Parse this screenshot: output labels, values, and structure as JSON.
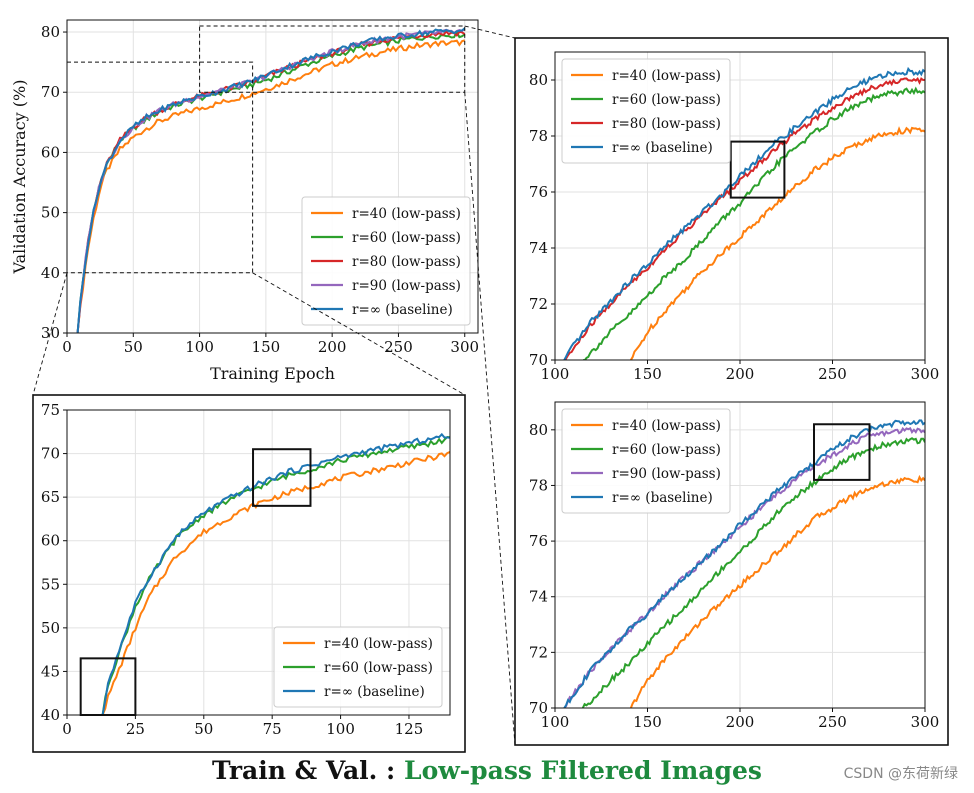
{
  "caption": {
    "prefix": "Train & Val. : ",
    "accent": "Low-pass Filtered Images"
  },
  "watermark": "CSDN @东荷新绿",
  "colors": {
    "r40": "#ff7f0e",
    "r60": "#2ca02c",
    "r80": "#d62728",
    "r90": "#9467bd",
    "rinf": "#1f77b4"
  },
  "chart_data": [
    {
      "id": "main",
      "type": "line",
      "xlabel": "Training Epoch",
      "ylabel": "Validation Accuracy (%)",
      "xlim": [
        0,
        310
      ],
      "ylim": [
        30,
        82
      ],
      "xticks": [
        0,
        50,
        100,
        150,
        200,
        250,
        300
      ],
      "yticks": [
        30,
        40,
        50,
        60,
        70,
        80
      ],
      "grid": true,
      "legend_position": "bottom-right",
      "series": [
        {
          "key": "r40",
          "label": "r=40 (low-pass)",
          "x": [
            8,
            10,
            15,
            20,
            25,
            30,
            40,
            50,
            60,
            70,
            80,
            90,
            100,
            120,
            140,
            160,
            180,
            200,
            220,
            240,
            260,
            280,
            300
          ],
          "y": [
            30,
            34,
            43,
            49,
            54,
            57,
            60.5,
            62.5,
            64,
            65.2,
            66,
            66.7,
            67.3,
            68.5,
            69.8,
            71.3,
            73,
            74.6,
            75.8,
            76.8,
            77.6,
            78.1,
            78.3
          ]
        },
        {
          "key": "r60",
          "label": "r=60 (low-pass)",
          "x": [
            8,
            10,
            15,
            20,
            25,
            30,
            40,
            50,
            60,
            70,
            80,
            90,
            100,
            120,
            140,
            160,
            180,
            200,
            220,
            240,
            260,
            280,
            300
          ],
          "y": [
            30,
            35,
            44,
            50,
            55,
            58,
            62,
            64,
            65.5,
            66.8,
            67.7,
            68.4,
            69,
            70.2,
            71.3,
            72.8,
            74.6,
            76,
            77.3,
            78.2,
            78.9,
            79.4,
            79.6
          ]
        },
        {
          "key": "r80",
          "label": "r=80 (low-pass)",
          "x": [
            8,
            10,
            15,
            20,
            25,
            30,
            40,
            50,
            60,
            70,
            80,
            90,
            100,
            120,
            140,
            160,
            180,
            200,
            220,
            240,
            260,
            280,
            300
          ],
          "y": [
            30,
            35,
            44,
            50,
            55,
            58,
            62,
            64.2,
            65.8,
            67,
            67.9,
            68.7,
            69.3,
            70.5,
            71.8,
            73.5,
            75.1,
            76.5,
            77.8,
            78.7,
            79.3,
            79.8,
            79.9
          ]
        },
        {
          "key": "r90",
          "label": "r=90 (low-pass)",
          "x": [
            8,
            10,
            15,
            20,
            25,
            30,
            40,
            50,
            60,
            70,
            80,
            90,
            100,
            120,
            140,
            160,
            180,
            200,
            220,
            240,
            260,
            280,
            300
          ],
          "y": [
            30,
            35,
            44,
            50,
            55,
            58,
            62,
            64.2,
            65.8,
            67,
            67.9,
            68.7,
            69.3,
            70.5,
            71.8,
            73.6,
            75.3,
            76.7,
            78,
            78.9,
            79.5,
            79.9,
            80.1
          ]
        },
        {
          "key": "rinf",
          "label": "r=∞ (baseline)",
          "x": [
            8,
            10,
            15,
            20,
            25,
            30,
            40,
            50,
            60,
            70,
            80,
            90,
            100,
            120,
            140,
            160,
            180,
            200,
            220,
            240,
            260,
            280,
            300
          ],
          "y": [
            30,
            35,
            44,
            50,
            55,
            58,
            62,
            64.2,
            65.8,
            67,
            67.9,
            68.7,
            69.3,
            70.5,
            71.9,
            73.7,
            75.4,
            76.8,
            78.1,
            79,
            79.6,
            80.1,
            80.3
          ]
        }
      ]
    },
    {
      "id": "zoom-early",
      "type": "line",
      "xlim": [
        0,
        140
      ],
      "ylim": [
        40,
        75
      ],
      "xticks": [
        0,
        25,
        50,
        75,
        100,
        125
      ],
      "yticks": [
        40,
        45,
        50,
        55,
        60,
        65,
        70,
        75
      ],
      "grid": true,
      "legend_position": "bottom-right",
      "series": [
        {
          "key": "r40",
          "label": "r=40 (low-pass)",
          "x": [
            13,
            15,
            20,
            25,
            30,
            35,
            40,
            50,
            60,
            70,
            80,
            90,
            100,
            110,
            120,
            130,
            140
          ],
          "y": [
            40,
            42,
            46,
            50,
            53.5,
            56,
            58.3,
            61,
            62.8,
            64.3,
            65.4,
            66.3,
            67.2,
            67.9,
            68.6,
            69.3,
            70
          ]
        },
        {
          "key": "r60",
          "label": "r=60 (low-pass)",
          "x": [
            13,
            15,
            20,
            25,
            30,
            35,
            40,
            50,
            60,
            70,
            80,
            90,
            100,
            110,
            120,
            130,
            140
          ],
          "y": [
            40,
            43.5,
            48,
            52.5,
            55.5,
            58,
            60.3,
            63,
            64.8,
            66.2,
            67.4,
            68.3,
            69.2,
            69.9,
            70.5,
            71,
            71.7
          ]
        },
        {
          "key": "rinf",
          "label": "r=∞ (baseline)",
          "x": [
            13,
            15,
            20,
            25,
            30,
            35,
            40,
            50,
            60,
            70,
            80,
            90,
            100,
            110,
            120,
            130,
            140
          ],
          "y": [
            40,
            43.7,
            48.3,
            52.8,
            55.7,
            58.2,
            60.5,
            63.2,
            65,
            66.5,
            67.8,
            68.7,
            69.6,
            70.3,
            70.9,
            71.5,
            72.1
          ]
        }
      ]
    },
    {
      "id": "zoom-late-top",
      "type": "line",
      "xlim": [
        100,
        300
      ],
      "ylim": [
        70,
        81
      ],
      "xticks": [
        100,
        150,
        200,
        250,
        300
      ],
      "yticks": [
        70,
        72,
        74,
        76,
        78,
        80
      ],
      "grid": true,
      "legend_position": "top-left",
      "series": [
        {
          "key": "r40",
          "label": "r=40 (low-pass)",
          "x": [
            141,
            150,
            160,
            170,
            180,
            190,
            200,
            210,
            220,
            230,
            240,
            250,
            260,
            270,
            280,
            290,
            300
          ],
          "y": [
            70,
            71,
            71.8,
            72.5,
            73.2,
            73.8,
            74.4,
            75,
            75.6,
            76.2,
            76.8,
            77.2,
            77.6,
            77.9,
            78.1,
            78.2,
            78.2
          ]
        },
        {
          "key": "r60",
          "label": "r=60 (low-pass)",
          "x": [
            115,
            120,
            130,
            140,
            150,
            160,
            170,
            180,
            190,
            200,
            210,
            220,
            230,
            240,
            250,
            260,
            270,
            280,
            290,
            300
          ],
          "y": [
            70,
            70.3,
            71,
            71.6,
            72.3,
            73,
            73.6,
            74.3,
            75,
            75.6,
            76.3,
            77,
            77.6,
            78.1,
            78.6,
            79,
            79.3,
            79.5,
            79.6,
            79.6
          ]
        },
        {
          "key": "r80",
          "label": "r=80 (low-pass)",
          "x": [
            105,
            110,
            120,
            130,
            140,
            150,
            160,
            170,
            180,
            190,
            200,
            210,
            220,
            230,
            240,
            250,
            260,
            270,
            280,
            290,
            300
          ],
          "y": [
            70,
            70.4,
            71.3,
            72,
            72.7,
            73.3,
            74,
            74.6,
            75.2,
            75.8,
            76.4,
            77,
            77.6,
            78.1,
            78.6,
            79,
            79.4,
            79.7,
            79.9,
            80,
            80
          ]
        },
        {
          "key": "rinf",
          "label": "r=∞ (baseline)",
          "x": [
            105,
            110,
            120,
            130,
            140,
            150,
            160,
            170,
            180,
            190,
            200,
            210,
            220,
            230,
            240,
            250,
            260,
            270,
            280,
            290,
            300
          ],
          "y": [
            70,
            70.5,
            71.4,
            72.1,
            72.8,
            73.4,
            74.1,
            74.7,
            75.3,
            75.9,
            76.6,
            77.2,
            77.8,
            78.3,
            78.8,
            79.3,
            79.7,
            80,
            80.2,
            80.3,
            80.3
          ]
        }
      ]
    },
    {
      "id": "zoom-late-bottom",
      "type": "line",
      "xlim": [
        100,
        300
      ],
      "ylim": [
        70,
        81
      ],
      "xticks": [
        100,
        150,
        200,
        250,
        300
      ],
      "yticks": [
        70,
        72,
        74,
        76,
        78,
        80
      ],
      "grid": true,
      "legend_position": "top-left",
      "series": [
        {
          "key": "r40",
          "label": "r=40 (low-pass)",
          "x": [
            141,
            150,
            160,
            170,
            180,
            190,
            200,
            210,
            220,
            230,
            240,
            250,
            260,
            270,
            280,
            290,
            300
          ],
          "y": [
            70,
            71,
            71.8,
            72.5,
            73.2,
            73.8,
            74.4,
            75,
            75.6,
            76.2,
            76.8,
            77.2,
            77.6,
            77.9,
            78.1,
            78.2,
            78.2
          ]
        },
        {
          "key": "r60",
          "label": "r=60 (low-pass)",
          "x": [
            115,
            120,
            130,
            140,
            150,
            160,
            170,
            180,
            190,
            200,
            210,
            220,
            230,
            240,
            250,
            260,
            270,
            280,
            290,
            300
          ],
          "y": [
            70,
            70.3,
            71,
            71.6,
            72.3,
            73,
            73.6,
            74.3,
            75,
            75.6,
            76.3,
            77,
            77.6,
            78.1,
            78.6,
            79,
            79.3,
            79.5,
            79.6,
            79.6
          ]
        },
        {
          "key": "r90",
          "label": "r=90 (low-pass)",
          "x": [
            105,
            110,
            120,
            130,
            140,
            150,
            160,
            170,
            180,
            190,
            200,
            210,
            220,
            230,
            240,
            250,
            260,
            270,
            280,
            290,
            300
          ],
          "y": [
            70,
            70.5,
            71.4,
            72.1,
            72.8,
            73.4,
            74.1,
            74.7,
            75.3,
            75.9,
            76.5,
            77.1,
            77.7,
            78.2,
            78.7,
            79.1,
            79.5,
            79.8,
            79.9,
            80,
            80
          ]
        },
        {
          "key": "rinf",
          "label": "r=∞ (baseline)",
          "x": [
            105,
            110,
            120,
            130,
            140,
            150,
            160,
            170,
            180,
            190,
            200,
            210,
            220,
            230,
            240,
            250,
            260,
            270,
            280,
            290,
            300
          ],
          "y": [
            70,
            70.5,
            71.4,
            72.1,
            72.8,
            73.4,
            74.1,
            74.7,
            75.3,
            75.9,
            76.6,
            77.2,
            77.8,
            78.3,
            78.8,
            79.3,
            79.7,
            80,
            80.2,
            80.3,
            80.3
          ]
        }
      ]
    }
  ],
  "zoom_regions": {
    "main": [
      [
        0,
        40,
        140,
        75
      ],
      [
        100,
        70,
        300,
        81
      ]
    ],
    "zoom-early": [
      [
        5,
        40,
        25,
        46.5
      ],
      [
        68,
        64,
        89,
        70.5
      ]
    ],
    "zoom-late-top": [
      [
        195,
        75.8,
        224,
        77.8
      ]
    ],
    "zoom-late-bottom": [
      [
        240,
        78.2,
        270,
        80.2
      ]
    ]
  }
}
